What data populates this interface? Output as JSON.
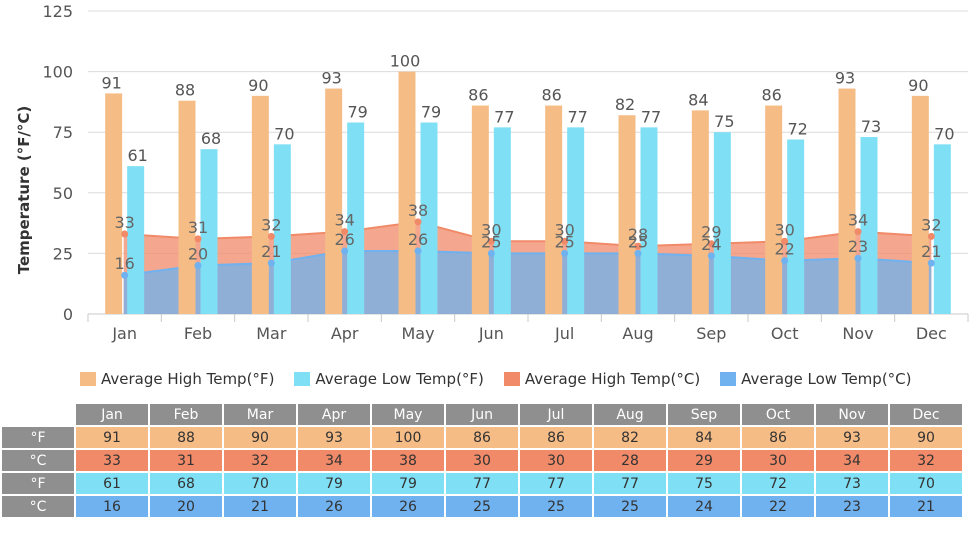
{
  "chart_data": {
    "type": "bar",
    "categories": [
      "Jan",
      "Feb",
      "Mar",
      "Apr",
      "May",
      "Jun",
      "Jul",
      "Aug",
      "Sep",
      "Oct",
      "Nov",
      "Dec"
    ],
    "ylabel": "Temperature (°F/°C)",
    "ylim": [
      0,
      125
    ],
    "yticks": [
      0,
      25,
      50,
      75,
      100,
      125
    ],
    "grid": true,
    "legend_position": "bottom",
    "series": [
      {
        "name": "Average High Temp(°F)",
        "kind": "bar",
        "color": "#f5bc86",
        "values": [
          91,
          88,
          90,
          93,
          100,
          86,
          86,
          82,
          84,
          86,
          93,
          90
        ]
      },
      {
        "name": "Average Low Temp(°F)",
        "kind": "bar",
        "color": "#7fe0f5",
        "values": [
          61,
          68,
          70,
          79,
          79,
          77,
          77,
          77,
          75,
          72,
          73,
          70
        ]
      },
      {
        "name": "Average High Temp(°C)",
        "kind": "area",
        "color": "#f08a68",
        "values": [
          33,
          31,
          32,
          34,
          38,
          30,
          30,
          28,
          29,
          30,
          34,
          32
        ]
      },
      {
        "name": "Average Low Temp(°C)",
        "kind": "area",
        "color": "#6fb2ef",
        "values": [
          16,
          20,
          21,
          26,
          26,
          25,
          25,
          25,
          24,
          22,
          23,
          21
        ]
      }
    ]
  },
  "table": {
    "rows": [
      {
        "unit": "°F",
        "color": "#f5bc86",
        "values": [
          91,
          88,
          90,
          93,
          100,
          86,
          86,
          82,
          84,
          86,
          93,
          90
        ]
      },
      {
        "unit": "°C",
        "color": "#f08a68",
        "values": [
          33,
          31,
          32,
          34,
          38,
          30,
          30,
          28,
          29,
          30,
          34,
          32
        ]
      },
      {
        "unit": "°F",
        "color": "#7fe0f5",
        "values": [
          61,
          68,
          70,
          79,
          79,
          77,
          77,
          77,
          75,
          72,
          73,
          70
        ]
      },
      {
        "unit": "°C",
        "color": "#6fb2ef",
        "values": [
          16,
          20,
          21,
          26,
          26,
          25,
          25,
          25,
          24,
          22,
          23,
          21
        ]
      }
    ]
  }
}
